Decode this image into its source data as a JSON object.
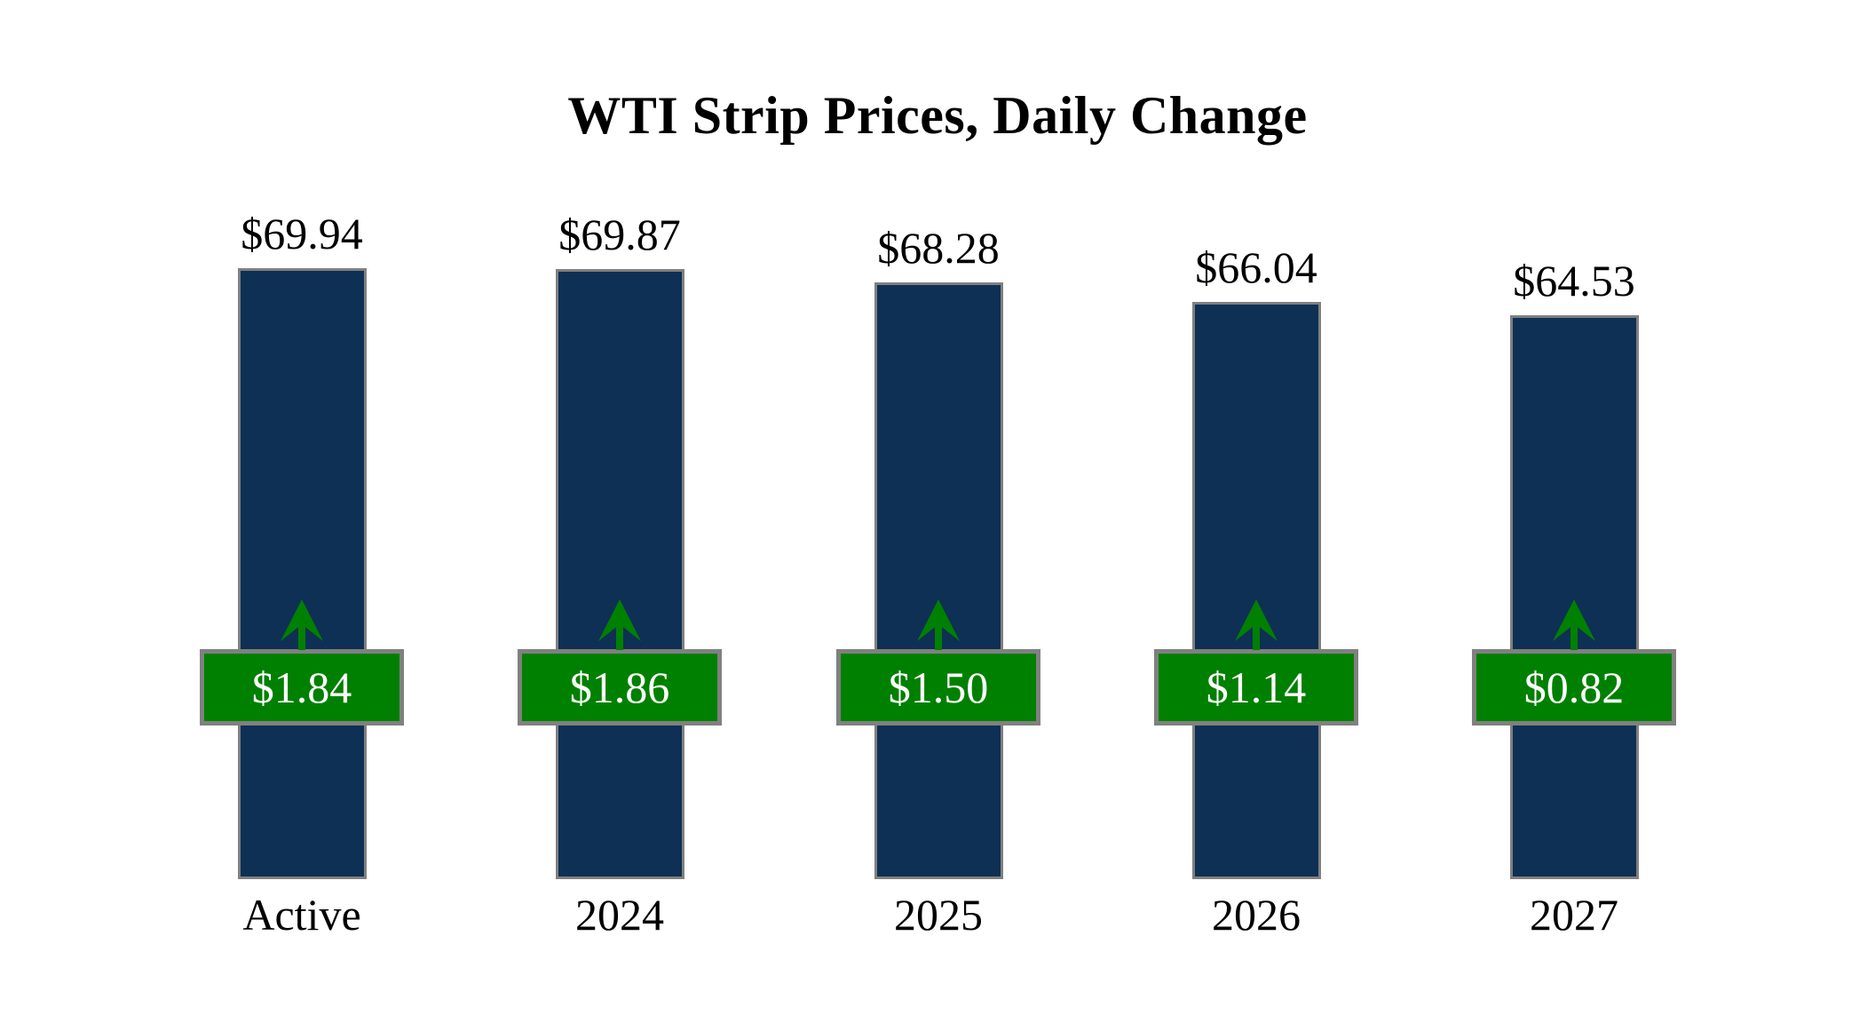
{
  "title": "WTI Strip Prices, Daily Change",
  "chart_data": {
    "type": "bar",
    "title": "WTI Strip Prices, Daily Change",
    "categories": [
      "Active",
      "2024",
      "2025",
      "2026",
      "2027"
    ],
    "series": [
      {
        "name": "Strip Price ($/bbl)",
        "values": [
          69.94,
          69.87,
          68.28,
          66.04,
          64.53
        ]
      },
      {
        "name": "Daily Change ($)",
        "values": [
          1.84,
          1.86,
          1.5,
          1.14,
          0.82
        ]
      }
    ],
    "price_labels": [
      "$69.94",
      "$69.87",
      "$68.28",
      "$66.04",
      "$64.53"
    ],
    "change_labels": [
      "$1.84",
      "$1.86",
      "$1.50",
      "$1.14",
      "$0.82"
    ],
    "change_direction": "up",
    "xlabel": "",
    "ylabel": "",
    "ylim": [
      0,
      70
    ],
    "grid": false,
    "legend": "none",
    "axes_hidden": true,
    "bar_color": "#0e3054",
    "bar_border_color": "#808080",
    "change_color": "#008000",
    "change_border_color": "#808080",
    "change_text_color": "#ffffff",
    "label_color": "#000000",
    "background_color": "#ffffff"
  }
}
